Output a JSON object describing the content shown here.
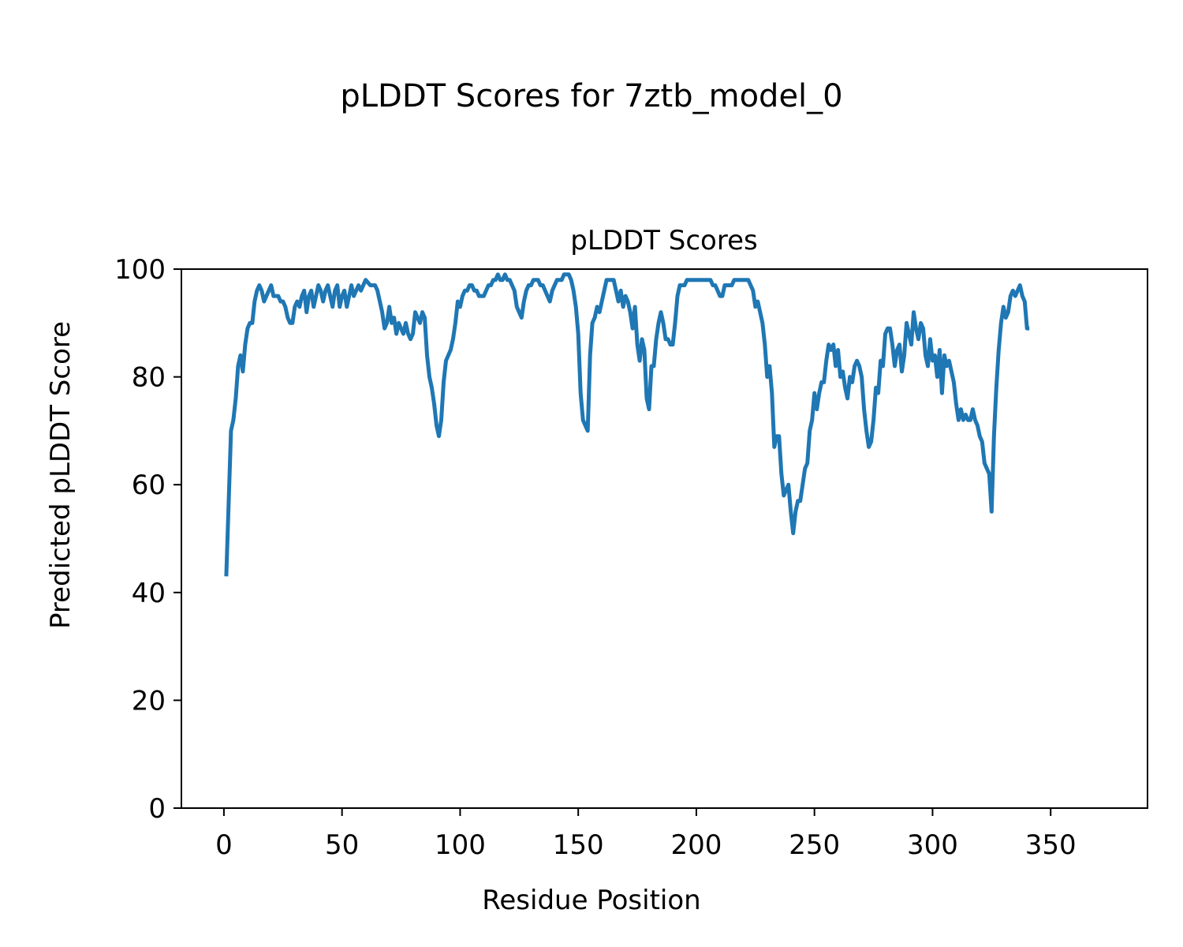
{
  "figure": {
    "suptitle": "pLDDT Scores for 7ztb_model_0"
  },
  "chart_data": {
    "type": "line",
    "title": "pLDDT Scores",
    "xlabel": "Residue Position",
    "ylabel": "Predicted pLDDT Score",
    "xlim": [
      -18,
      391
    ],
    "ylim": [
      0,
      100
    ],
    "xticks": [
      0,
      50,
      100,
      150,
      200,
      250,
      300,
      350
    ],
    "yticks": [
      0,
      20,
      40,
      60,
      80,
      100
    ],
    "grid": false,
    "legend": "none",
    "series": [
      {
        "color": "#1f77b4",
        "points": [
          [
            1,
            43
          ],
          [
            3,
            70
          ],
          [
            4,
            72
          ],
          [
            5,
            76
          ],
          [
            6,
            82
          ],
          [
            7,
            84
          ],
          [
            8,
            81
          ],
          [
            9,
            86
          ],
          [
            10,
            89
          ],
          [
            11,
            90
          ],
          [
            12,
            90
          ],
          [
            13,
            94
          ],
          [
            14,
            96
          ],
          [
            15,
            97
          ],
          [
            16,
            96
          ],
          [
            17,
            94
          ],
          [
            18,
            95
          ],
          [
            19,
            96
          ],
          [
            20,
            97
          ],
          [
            21,
            95
          ],
          [
            22,
            95
          ],
          [
            23,
            95
          ],
          [
            24,
            94
          ],
          [
            25,
            94
          ],
          [
            26,
            93
          ],
          [
            27,
            91
          ],
          [
            28,
            90
          ],
          [
            29,
            90
          ],
          [
            30,
            93
          ],
          [
            31,
            94
          ],
          [
            32,
            93
          ],
          [
            33,
            95
          ],
          [
            34,
            96
          ],
          [
            35,
            92
          ],
          [
            36,
            95
          ],
          [
            37,
            96
          ],
          [
            38,
            93
          ],
          [
            39,
            95
          ],
          [
            40,
            97
          ],
          [
            41,
            96
          ],
          [
            42,
            94
          ],
          [
            43,
            96
          ],
          [
            44,
            97
          ],
          [
            45,
            95
          ],
          [
            46,
            93
          ],
          [
            47,
            96
          ],
          [
            48,
            97
          ],
          [
            49,
            93
          ],
          [
            50,
            95
          ],
          [
            51,
            96
          ],
          [
            52,
            93
          ],
          [
            53,
            95
          ],
          [
            54,
            97
          ],
          [
            55,
            95
          ],
          [
            56,
            96
          ],
          [
            57,
            97
          ],
          [
            58,
            96
          ],
          [
            59,
            97
          ],
          [
            60,
            98
          ],
          [
            62,
            97
          ],
          [
            64,
            97
          ],
          [
            65,
            96
          ],
          [
            66,
            94
          ],
          [
            67,
            92
          ],
          [
            68,
            89
          ],
          [
            69,
            90
          ],
          [
            70,
            93
          ],
          [
            71,
            90
          ],
          [
            72,
            91
          ],
          [
            73,
            88
          ],
          [
            74,
            90
          ],
          [
            75,
            89
          ],
          [
            76,
            88
          ],
          [
            77,
            90
          ],
          [
            78,
            88
          ],
          [
            79,
            87
          ],
          [
            80,
            88
          ],
          [
            81,
            92
          ],
          [
            82,
            91
          ],
          [
            83,
            90
          ],
          [
            84,
            92
          ],
          [
            85,
            91
          ],
          [
            86,
            84
          ],
          [
            87,
            80
          ],
          [
            88,
            78
          ],
          [
            89,
            75
          ],
          [
            90,
            71
          ],
          [
            91,
            69
          ],
          [
            92,
            72
          ],
          [
            93,
            79
          ],
          [
            94,
            83
          ],
          [
            95,
            84
          ],
          [
            96,
            85
          ],
          [
            97,
            87
          ],
          [
            98,
            90
          ],
          [
            99,
            94
          ],
          [
            100,
            93
          ],
          [
            101,
            95
          ],
          [
            102,
            96
          ],
          [
            103,
            96
          ],
          [
            104,
            97
          ],
          [
            105,
            97
          ],
          [
            106,
            96
          ],
          [
            107,
            96
          ],
          [
            108,
            95
          ],
          [
            109,
            95
          ],
          [
            110,
            95
          ],
          [
            111,
            96
          ],
          [
            112,
            97
          ],
          [
            113,
            97
          ],
          [
            114,
            98
          ],
          [
            115,
            98
          ],
          [
            116,
            99
          ],
          [
            117,
            98
          ],
          [
            118,
            98
          ],
          [
            119,
            99
          ],
          [
            120,
            98
          ],
          [
            121,
            98
          ],
          [
            122,
            97
          ],
          [
            123,
            96
          ],
          [
            124,
            93
          ],
          [
            125,
            92
          ],
          [
            126,
            91
          ],
          [
            127,
            94
          ],
          [
            128,
            96
          ],
          [
            129,
            97
          ],
          [
            130,
            97
          ],
          [
            131,
            98
          ],
          [
            132,
            98
          ],
          [
            133,
            98
          ],
          [
            134,
            97
          ],
          [
            135,
            97
          ],
          [
            136,
            96
          ],
          [
            137,
            95
          ],
          [
            138,
            94
          ],
          [
            139,
            96
          ],
          [
            140,
            97
          ],
          [
            141,
            98
          ],
          [
            142,
            98
          ],
          [
            143,
            98
          ],
          [
            144,
            99
          ],
          [
            145,
            99
          ],
          [
            146,
            99
          ],
          [
            147,
            98
          ],
          [
            148,
            96
          ],
          [
            149,
            93
          ],
          [
            150,
            88
          ],
          [
            151,
            77
          ],
          [
            152,
            72
          ],
          [
            153,
            71
          ],
          [
            154,
            70
          ],
          [
            155,
            84
          ],
          [
            156,
            90
          ],
          [
            157,
            91
          ],
          [
            158,
            93
          ],
          [
            159,
            92
          ],
          [
            160,
            94
          ],
          [
            161,
            96
          ],
          [
            162,
            98
          ],
          [
            163,
            98
          ],
          [
            164,
            98
          ],
          [
            165,
            98
          ],
          [
            166,
            96
          ],
          [
            167,
            94
          ],
          [
            168,
            96
          ],
          [
            169,
            93
          ],
          [
            170,
            95
          ],
          [
            171,
            94
          ],
          [
            172,
            92
          ],
          [
            173,
            89
          ],
          [
            174,
            93
          ],
          [
            175,
            86
          ],
          [
            176,
            83
          ],
          [
            177,
            87
          ],
          [
            178,
            85
          ],
          [
            179,
            76
          ],
          [
            180,
            74
          ],
          [
            181,
            82
          ],
          [
            182,
            82
          ],
          [
            183,
            87
          ],
          [
            184,
            90
          ],
          [
            185,
            92
          ],
          [
            186,
            90
          ],
          [
            187,
            87
          ],
          [
            188,
            87
          ],
          [
            189,
            86
          ],
          [
            190,
            86
          ],
          [
            191,
            90
          ],
          [
            192,
            95
          ],
          [
            193,
            97
          ],
          [
            194,
            97
          ],
          [
            195,
            97
          ],
          [
            196,
            98
          ],
          [
            197,
            98
          ],
          [
            198,
            98
          ],
          [
            199,
            98
          ],
          [
            200,
            98
          ],
          [
            201,
            98
          ],
          [
            202,
            98
          ],
          [
            203,
            98
          ],
          [
            204,
            98
          ],
          [
            205,
            98
          ],
          [
            206,
            98
          ],
          [
            207,
            97
          ],
          [
            208,
            97
          ],
          [
            209,
            96
          ],
          [
            210,
            95
          ],
          [
            211,
            95
          ],
          [
            212,
            97
          ],
          [
            213,
            97
          ],
          [
            214,
            97
          ],
          [
            215,
            97
          ],
          [
            216,
            98
          ],
          [
            217,
            98
          ],
          [
            218,
            98
          ],
          [
            219,
            98
          ],
          [
            220,
            98
          ],
          [
            221,
            98
          ],
          [
            222,
            98
          ],
          [
            223,
            97
          ],
          [
            224,
            96
          ],
          [
            225,
            93
          ],
          [
            226,
            94
          ],
          [
            227,
            92
          ],
          [
            228,
            90
          ],
          [
            229,
            86
          ],
          [
            230,
            80
          ],
          [
            231,
            82
          ],
          [
            232,
            77
          ],
          [
            233,
            67
          ],
          [
            234,
            69
          ],
          [
            235,
            69
          ],
          [
            236,
            62
          ],
          [
            237,
            58
          ],
          [
            238,
            59
          ],
          [
            239,
            60
          ],
          [
            240,
            55
          ],
          [
            241,
            51
          ],
          [
            242,
            55
          ],
          [
            243,
            57
          ],
          [
            244,
            57
          ],
          [
            245,
            60
          ],
          [
            246,
            63
          ],
          [
            247,
            64
          ],
          [
            248,
            70
          ],
          [
            249,
            72
          ],
          [
            250,
            77
          ],
          [
            251,
            74
          ],
          [
            252,
            77
          ],
          [
            253,
            79
          ],
          [
            254,
            79
          ],
          [
            255,
            83
          ],
          [
            256,
            86
          ],
          [
            257,
            85
          ],
          [
            258,
            86
          ],
          [
            259,
            82
          ],
          [
            260,
            85
          ],
          [
            261,
            80
          ],
          [
            262,
            81
          ],
          [
            263,
            78
          ],
          [
            264,
            76
          ],
          [
            265,
            80
          ],
          [
            266,
            79
          ],
          [
            267,
            82
          ],
          [
            268,
            83
          ],
          [
            269,
            82
          ],
          [
            270,
            80
          ],
          [
            271,
            74
          ],
          [
            272,
            70
          ],
          [
            273,
            67
          ],
          [
            274,
            68
          ],
          [
            275,
            72
          ],
          [
            276,
            78
          ],
          [
            277,
            77
          ],
          [
            278,
            83
          ],
          [
            279,
            82
          ],
          [
            280,
            88
          ],
          [
            281,
            89
          ],
          [
            282,
            89
          ],
          [
            283,
            86
          ],
          [
            284,
            82
          ],
          [
            285,
            85
          ],
          [
            286,
            86
          ],
          [
            287,
            81
          ],
          [
            288,
            84
          ],
          [
            289,
            90
          ],
          [
            290,
            88
          ],
          [
            291,
            86
          ],
          [
            292,
            92
          ],
          [
            293,
            89
          ],
          [
            294,
            87
          ],
          [
            295,
            90
          ],
          [
            296,
            89
          ],
          [
            297,
            84
          ],
          [
            298,
            82
          ],
          [
            299,
            87
          ],
          [
            300,
            83
          ],
          [
            301,
            84
          ],
          [
            302,
            80
          ],
          [
            303,
            85
          ],
          [
            304,
            77
          ],
          [
            305,
            84
          ],
          [
            306,
            82
          ],
          [
            307,
            83
          ],
          [
            308,
            81
          ],
          [
            309,
            79
          ],
          [
            310,
            75
          ],
          [
            311,
            72
          ],
          [
            312,
            74
          ],
          [
            313,
            72
          ],
          [
            314,
            73
          ],
          [
            315,
            72
          ],
          [
            316,
            72
          ],
          [
            317,
            74
          ],
          [
            318,
            72
          ],
          [
            319,
            71
          ],
          [
            320,
            69
          ],
          [
            321,
            68
          ],
          [
            322,
            64
          ],
          [
            323,
            63
          ],
          [
            324,
            62
          ],
          [
            325,
            55
          ],
          [
            326,
            69
          ],
          [
            327,
            78
          ],
          [
            328,
            85
          ],
          [
            329,
            90
          ],
          [
            330,
            93
          ],
          [
            331,
            91
          ],
          [
            332,
            92
          ],
          [
            333,
            95
          ],
          [
            334,
            96
          ],
          [
            335,
            95
          ],
          [
            336,
            96
          ],
          [
            337,
            97
          ],
          [
            338,
            95
          ],
          [
            339,
            94
          ],
          [
            340,
            89
          ],
          [
            341,
            89
          ]
        ]
      }
    ]
  }
}
